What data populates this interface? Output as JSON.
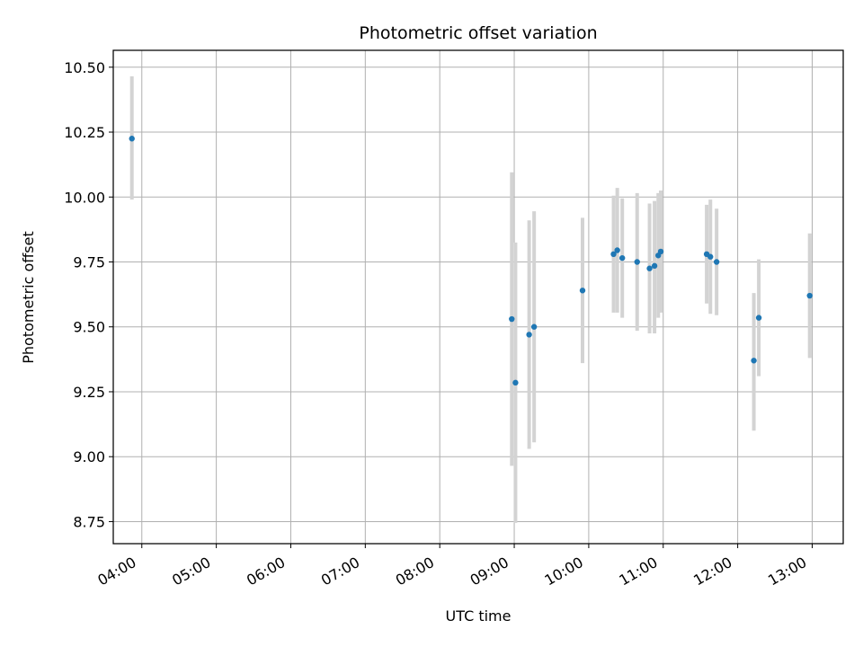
{
  "chart_data": {
    "type": "scatter",
    "title": "Photometric offset variation",
    "xlabel": "UTC time",
    "ylabel": "Photometric offset",
    "x_unit": "hours UTC",
    "xlim": [
      "03:37",
      "13:25"
    ],
    "ylim": [
      8.665,
      10.565
    ],
    "grid": true,
    "x_ticks": [
      "04:00",
      "05:00",
      "06:00",
      "07:00",
      "08:00",
      "09:00",
      "10:00",
      "11:00",
      "12:00",
      "13:00"
    ],
    "y_ticks": [
      8.75,
      9.0,
      9.25,
      9.5,
      9.75,
      10.0,
      10.25,
      10.5
    ],
    "y_tick_labels": [
      "8.75",
      "9.00",
      "9.25",
      "9.50",
      "9.75",
      "10.00",
      "10.25",
      "10.50"
    ],
    "marker_color": "#1f77b4",
    "errorbar_color": "#d3d3d3",
    "points": [
      {
        "t": "03:52",
        "y": 10.225,
        "ylo": 9.99,
        "yhi": 10.465
      },
      {
        "t": "08:58",
        "y": 9.53,
        "ylo": 8.965,
        "yhi": 10.095
      },
      {
        "t": "09:01",
        "y": 9.285,
        "ylo": 8.745,
        "yhi": 9.825
      },
      {
        "t": "09:12",
        "y": 9.47,
        "ylo": 9.03,
        "yhi": 9.91
      },
      {
        "t": "09:16",
        "y": 9.5,
        "ylo": 9.055,
        "yhi": 9.945
      },
      {
        "t": "09:55",
        "y": 9.64,
        "ylo": 9.36,
        "yhi": 9.92
      },
      {
        "t": "10:20",
        "y": 9.78,
        "ylo": 9.555,
        "yhi": 10.005
      },
      {
        "t": "10:23",
        "y": 9.795,
        "ylo": 9.555,
        "yhi": 10.035
      },
      {
        "t": "10:27",
        "y": 9.765,
        "ylo": 9.535,
        "yhi": 9.995
      },
      {
        "t": "10:39",
        "y": 9.75,
        "ylo": 9.485,
        "yhi": 10.015
      },
      {
        "t": "10:49",
        "y": 9.725,
        "ylo": 9.475,
        "yhi": 9.975
      },
      {
        "t": "10:53",
        "y": 9.735,
        "ylo": 9.475,
        "yhi": 9.985
      },
      {
        "t": "10:56",
        "y": 9.775,
        "ylo": 9.535,
        "yhi": 10.015
      },
      {
        "t": "10:58",
        "y": 9.79,
        "ylo": 9.555,
        "yhi": 10.025
      },
      {
        "t": "11:35",
        "y": 9.78,
        "ylo": 9.59,
        "yhi": 9.97
      },
      {
        "t": "11:38",
        "y": 9.77,
        "ylo": 9.55,
        "yhi": 9.99
      },
      {
        "t": "11:43",
        "y": 9.75,
        "ylo": 9.545,
        "yhi": 9.955
      },
      {
        "t": "12:13",
        "y": 9.37,
        "ylo": 9.1,
        "yhi": 9.63
      },
      {
        "t": "12:17",
        "y": 9.535,
        "ylo": 9.31,
        "yhi": 9.76
      },
      {
        "t": "12:58",
        "y": 9.62,
        "ylo": 9.38,
        "yhi": 9.86
      }
    ]
  }
}
